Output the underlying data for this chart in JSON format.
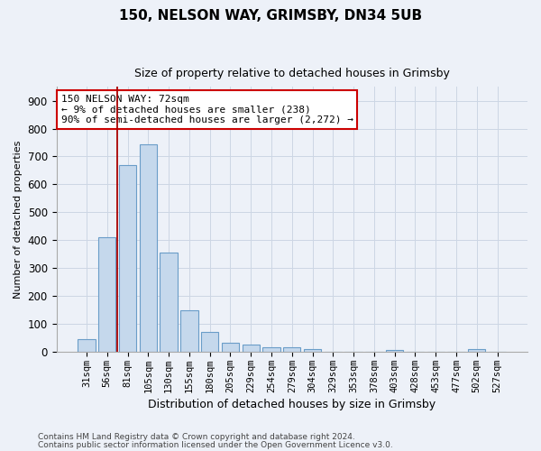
{
  "title1": "150, NELSON WAY, GRIMSBY, DN34 5UB",
  "title2": "Size of property relative to detached houses in Grimsby",
  "xlabel": "Distribution of detached houses by size in Grimsby",
  "ylabel": "Number of detached properties",
  "footer1": "Contains HM Land Registry data © Crown copyright and database right 2024.",
  "footer2": "Contains public sector information licensed under the Open Government Licence v3.0.",
  "categories": [
    "31sqm",
    "56sqm",
    "81sqm",
    "105sqm",
    "130sqm",
    "155sqm",
    "180sqm",
    "205sqm",
    "229sqm",
    "254sqm",
    "279sqm",
    "304sqm",
    "329sqm",
    "353sqm",
    "378sqm",
    "403sqm",
    "428sqm",
    "453sqm",
    "477sqm",
    "502sqm",
    "527sqm"
  ],
  "values": [
    45,
    410,
    670,
    745,
    355,
    148,
    70,
    33,
    25,
    15,
    15,
    8,
    0,
    0,
    0,
    5,
    0,
    0,
    0,
    8,
    0
  ],
  "bar_color": "#c5d8ec",
  "bar_edge_color": "#6a9dc8",
  "vline_x": 1.5,
  "vline_color": "#aa0000",
  "ann_line1": "150 NELSON WAY: 72sqm",
  "ann_line2": "← 9% of detached houses are smaller (238)",
  "ann_line3": "90% of semi-detached houses are larger (2,272) →",
  "annotation_box_color": "#ffffff",
  "annotation_box_edge_color": "#cc0000",
  "grid_color": "#ccd6e4",
  "ylim": [
    0,
    950
  ],
  "yticks": [
    0,
    100,
    200,
    300,
    400,
    500,
    600,
    700,
    800,
    900
  ],
  "bg_color": "#edf1f8",
  "plot_bg_color": "#edf1f8",
  "title1_fontsize": 11,
  "title2_fontsize": 9,
  "ylabel_fontsize": 8,
  "xlabel_fontsize": 9
}
